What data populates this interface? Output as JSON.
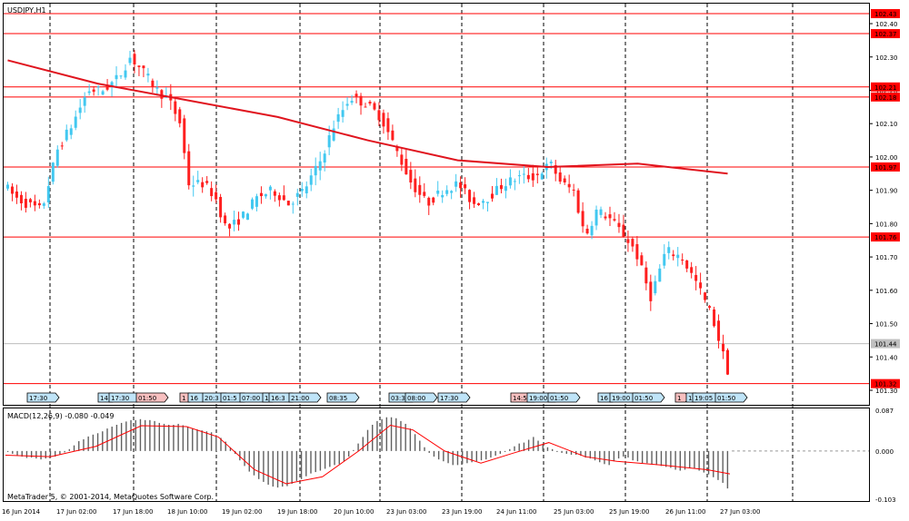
{
  "chart": {
    "symbol_label": "USDJPY,H1",
    "copyright": "MetaTrader 5, © 2001-2014, MetaQuotes Software Corp.",
    "colors": {
      "background": "#ffffff",
      "frame": "#000000",
      "bull_candle": "#42c8f0",
      "bear_candle": "#ff1f1f",
      "level_line": "#ff0000",
      "moving_average": "#e0141e",
      "histogram": "#606060",
      "signal_line": "#ff0000",
      "marker_blue_fill": "#bfe4f8",
      "marker_red_fill": "#f8c0c0",
      "current_price_label": "#c0c0c0"
    }
  },
  "chart_data": [
    {
      "type": "candlestick",
      "title": "USDJPY,H1",
      "ylim": [
        101.3,
        102.46
      ],
      "y_ticks": [
        "102.40",
        "102.30",
        "102.20",
        "102.10",
        "102.00",
        "101.90",
        "101.80",
        "101.70",
        "101.60",
        "101.50",
        "101.40",
        "101.30"
      ],
      "price_levels": [
        "102.43",
        "102.37",
        "102.21",
        "102.18",
        "101.97",
        "101.76",
        "101.32"
      ],
      "current_price": "101.44",
      "candle_count": 160,
      "moving_average": {
        "points": [
          [
            0,
            102.29
          ],
          [
            20,
            102.22
          ],
          [
            40,
            102.17
          ],
          [
            60,
            102.12
          ],
          [
            80,
            102.05
          ],
          [
            100,
            101.99
          ],
          [
            120,
            101.97
          ],
          [
            140,
            101.98
          ],
          [
            160,
            101.95
          ]
        ]
      },
      "event_markers": [
        {
          "text": "17:30",
          "color": "blue"
        },
        {
          "text": "14",
          "color": "blue"
        },
        {
          "text": "17:30",
          "color": "blue"
        },
        {
          "text": "01:50",
          "color": "red"
        },
        {
          "text": "1",
          "color": "red"
        },
        {
          "text": "16",
          "color": "blue"
        },
        {
          "text": "20:3",
          "color": "blue"
        },
        {
          "text": "01:5",
          "color": "blue"
        },
        {
          "text": "07:00",
          "color": "blue"
        },
        {
          "text": "1",
          "color": "blue"
        },
        {
          "text": "16:3",
          "color": "blue"
        },
        {
          "text": "21:00",
          "color": "blue"
        },
        {
          "text": "08:35",
          "color": "blue"
        },
        {
          "text": "03:3",
          "color": "blue"
        },
        {
          "text": "08:00",
          "color": "blue"
        },
        {
          "text": "17:30",
          "color": "blue"
        },
        {
          "text": "14:5",
          "color": "red"
        },
        {
          "text": "19:00",
          "color": "blue"
        },
        {
          "text": "01:50",
          "color": "blue"
        },
        {
          "text": "16",
          "color": "blue"
        },
        {
          "text": "19:00",
          "color": "blue"
        },
        {
          "text": "01:50",
          "color": "blue"
        },
        {
          "text": "1",
          "color": "red"
        },
        {
          "text": "1",
          "color": "blue"
        },
        {
          "text": "19:05",
          "color": "blue"
        },
        {
          "text": "01:50",
          "color": "blue"
        }
      ]
    },
    {
      "type": "bar",
      "title": "MACD(12,26,9) -0.080 -0.049",
      "ylim": [
        -0.103,
        0.087
      ],
      "y_ticks": [
        "0.087",
        "0.000",
        "-0.103"
      ],
      "values": [
        -0.002,
        -0.006,
        -0.01,
        -0.012,
        -0.015,
        -0.014,
        -0.016,
        -0.018,
        -0.016,
        -0.014,
        -0.012,
        -0.008,
        -0.003,
        0.004,
        0.012,
        0.021,
        0.025,
        0.031,
        0.035,
        0.038,
        0.042,
        0.048,
        0.052,
        0.056,
        0.06,
        0.063,
        0.066,
        0.066,
        0.068,
        0.066,
        0.066,
        0.064,
        0.06,
        0.058,
        0.056,
        0.056,
        0.058,
        0.055,
        0.052,
        0.048,
        0.046,
        0.044,
        0.042,
        0.04,
        0.034,
        0.028,
        0.02,
        0.008,
        -0.006,
        -0.02,
        -0.032,
        -0.044,
        -0.052,
        -0.06,
        -0.066,
        -0.072,
        -0.076,
        -0.078,
        -0.076,
        -0.075,
        -0.07,
        -0.064,
        -0.06,
        -0.054,
        -0.048,
        -0.045,
        -0.042,
        -0.038,
        -0.034,
        -0.03,
        -0.028,
        -0.022,
        -0.012,
        0.002,
        0.016,
        0.03,
        0.045,
        0.056,
        0.064,
        0.068,
        0.072,
        0.072,
        0.07,
        0.064,
        0.058,
        0.048,
        0.036,
        0.022,
        0.008,
        -0.004,
        -0.012,
        -0.018,
        -0.022,
        -0.026,
        -0.03,
        -0.03,
        -0.028,
        -0.026,
        -0.024,
        -0.022,
        -0.02,
        -0.018,
        -0.014,
        -0.01,
        -0.006,
        -0.002,
        0.004,
        0.01,
        0.016,
        0.018,
        0.024,
        0.03,
        0.022,
        0.014,
        0.008,
        0.004,
        -0.002,
        -0.004,
        -0.006,
        -0.008,
        -0.008,
        -0.01,
        -0.014,
        -0.016,
        -0.02,
        -0.024,
        -0.028,
        -0.03,
        -0.022,
        -0.016,
        -0.012,
        -0.014,
        -0.02,
        -0.022,
        -0.026,
        -0.026,
        -0.028,
        -0.03,
        -0.032,
        -0.034,
        -0.036,
        -0.04,
        -0.042,
        -0.04,
        -0.036,
        -0.038,
        -0.042,
        -0.046,
        -0.05,
        -0.056,
        -0.062,
        -0.068,
        -0.08
      ],
      "signal": [
        [
          0,
          -0.009
        ],
        [
          10,
          -0.012
        ],
        [
          20,
          0.01
        ],
        [
          30,
          0.054
        ],
        [
          40,
          0.052
        ],
        [
          47,
          0.03
        ],
        [
          55,
          -0.04
        ],
        [
          62,
          -0.07
        ],
        [
          70,
          -0.055
        ],
        [
          78,
          0.0
        ],
        [
          85,
          0.055
        ],
        [
          90,
          0.045
        ],
        [
          97,
          0.0
        ],
        [
          105,
          -0.026
        ],
        [
          112,
          -0.005
        ],
        [
          120,
          0.018
        ],
        [
          128,
          -0.012
        ],
        [
          135,
          -0.022
        ],
        [
          145,
          -0.03
        ],
        [
          155,
          -0.04
        ],
        [
          160,
          -0.049
        ]
      ]
    }
  ],
  "time_axis": {
    "labels": [
      "16 Jun 2014",
      "17 Jun 02:00",
      "17 Jun 18:00",
      "18 Jun 10:00",
      "19 Jun 02:00",
      "19 Jun 18:00",
      "20 Jun 10:00",
      "23 Jun 03:00",
      "23 Jun 19:00",
      "24 Jun 11:00",
      "25 Jun 03:00",
      "25 Jun 19:00",
      "26 Jun 11:00",
      "27 Jun 03:00"
    ]
  }
}
